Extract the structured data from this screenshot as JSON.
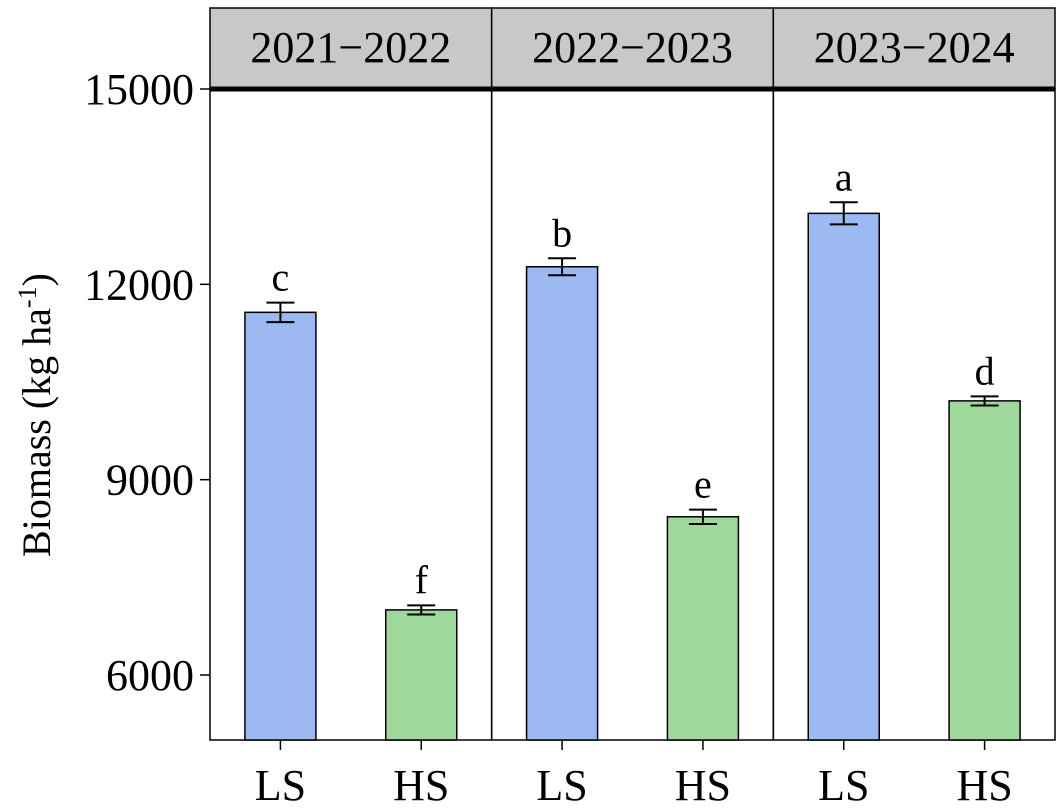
{
  "chart_data": {
    "type": "bar",
    "panels": [
      {
        "label": "2021−2022",
        "categories": [
          "LS",
          "HS"
        ],
        "values": [
          11570,
          7000
        ],
        "errors": [
          150,
          70
        ],
        "letters": [
          "c",
          "f"
        ]
      },
      {
        "label": "2022−2023",
        "categories": [
          "LS",
          "HS"
        ],
        "values": [
          12270,
          8430
        ],
        "errors": [
          130,
          110
        ],
        "letters": [
          "b",
          "e"
        ]
      },
      {
        "label": "2023−2024",
        "categories": [
          "LS",
          "HS"
        ],
        "values": [
          13090,
          10210
        ],
        "errors": [
          170,
          70
        ],
        "letters": [
          "a",
          "d"
        ]
      }
    ],
    "ylabel": "Biomass (kg ha",
    "ylabel_superscript": "-1",
    "ylabel_close": ")",
    "ylim": [
      5000,
      16100
    ],
    "yticks": [
      "6000",
      "9000",
      "12000",
      "15000"
    ],
    "grid": false,
    "colors": {
      "LS": "#9db9f2",
      "HS": "#9ed89b",
      "strip": "#c8c8c8",
      "axis": "#000000"
    }
  }
}
